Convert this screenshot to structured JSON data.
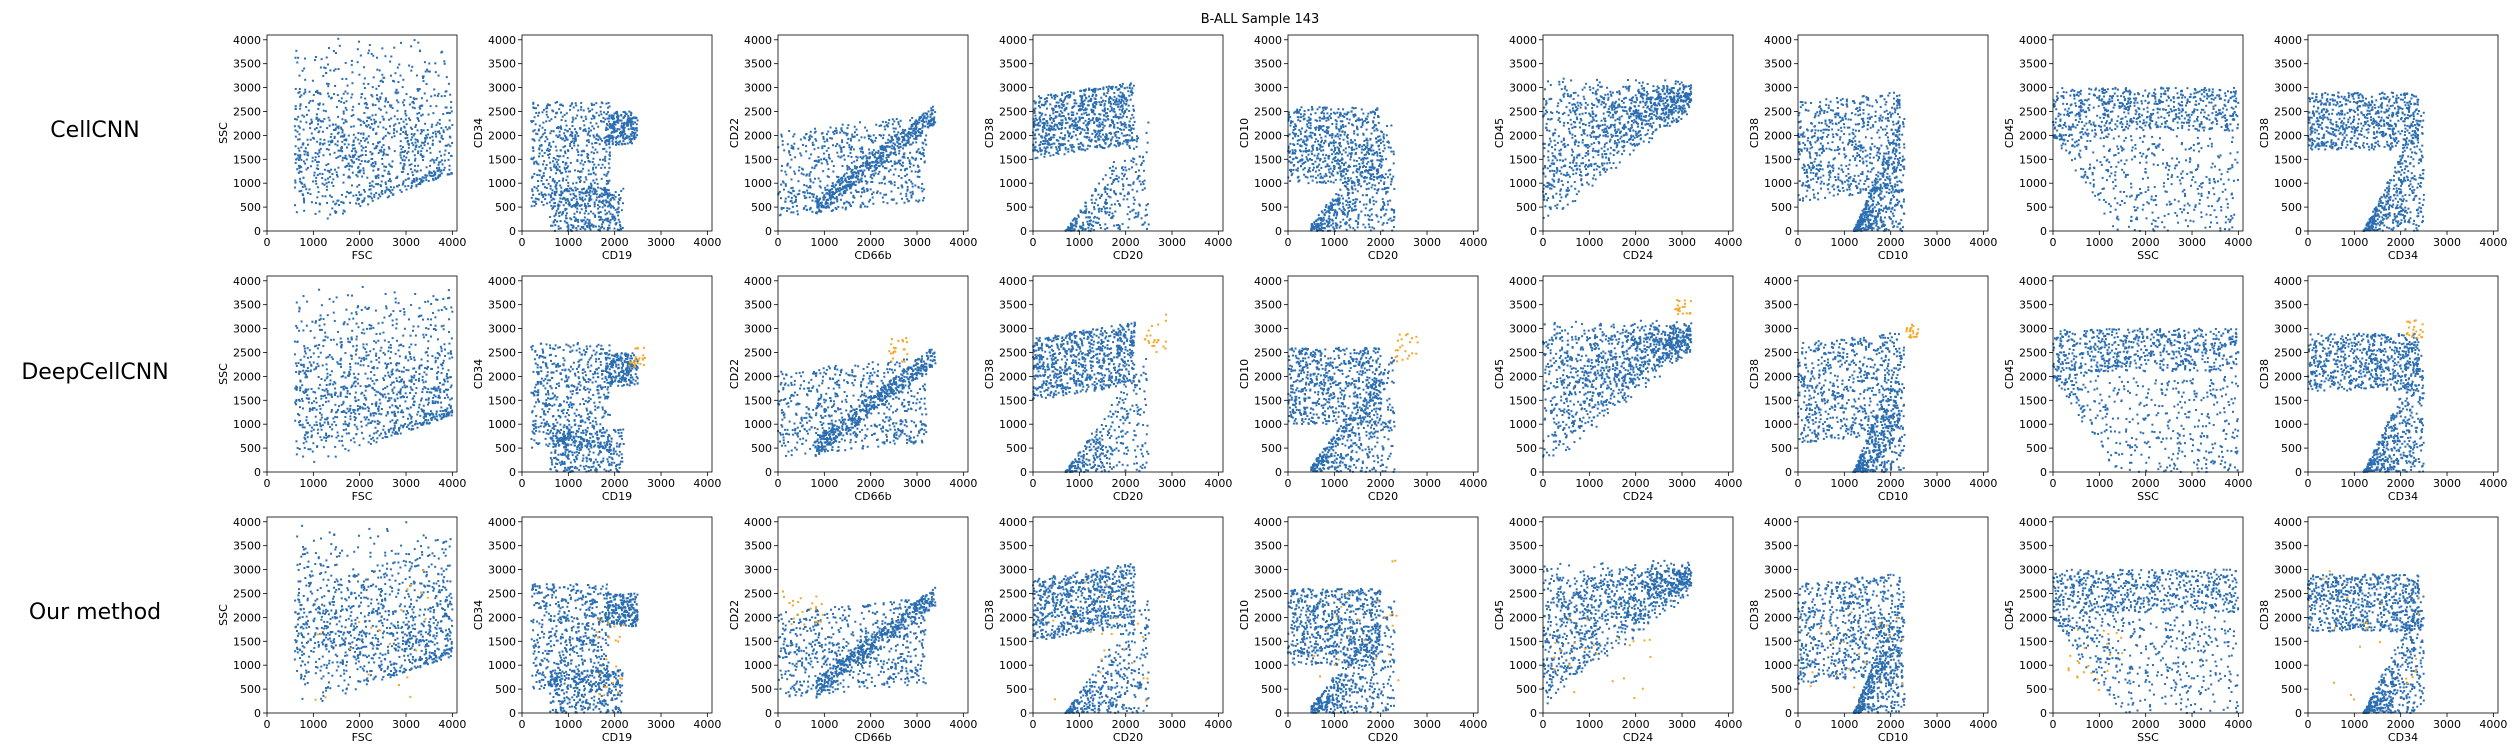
{
  "figure": {
    "title": "B-ALL Sample 143",
    "methods": [
      "CellCNN",
      "DeepCellCNN",
      "Our method"
    ],
    "colors": {
      "population": "#2a6db0",
      "highlight": "#f5a623"
    }
  },
  "chart_data": {
    "type": "scatter",
    "title": "B-ALL Sample 143",
    "rows": [
      "CellCNN",
      "DeepCellCNN",
      "Our method"
    ],
    "series": [
      {
        "name": "",
        "color": "#2a6db0",
        "description": "all cells"
      },
      {
        "name": "",
        "color": "#f5a623",
        "description": "selected cells"
      }
    ],
    "xlim": [
      0,
      4100
    ],
    "ylim": [
      0,
      4100
    ],
    "xticks": [
      0,
      1000,
      2000,
      3000,
      4000
    ],
    "yticks": [
      0,
      500,
      1000,
      1500,
      2000,
      2500,
      3000,
      3500,
      4000
    ],
    "panels": [
      {
        "xlabel": "FSC",
        "ylabel": "SSC"
      },
      {
        "xlabel": "CD19",
        "ylabel": "CD34"
      },
      {
        "xlabel": "CD66b",
        "ylabel": "CD22"
      },
      {
        "xlabel": "CD20",
        "ylabel": "CD38"
      },
      {
        "xlabel": "CD20",
        "ylabel": "CD10"
      },
      {
        "xlabel": "CD24",
        "ylabel": "CD45"
      },
      {
        "xlabel": "CD10",
        "ylabel": "CD38"
      },
      {
        "xlabel": "SSC",
        "ylabel": "CD45"
      },
      {
        "xlabel": "CD34",
        "ylabel": "CD38"
      }
    ],
    "highlight_regions": {
      "DeepCellCNN": [
        {
          "panel": 1,
          "x": [
            2300,
            2700
          ],
          "y": [
            2200,
            2600
          ]
        },
        {
          "panel": 2,
          "x": [
            2400,
            2800
          ],
          "y": [
            2300,
            2800
          ]
        },
        {
          "panel": 3,
          "x": [
            2400,
            2900
          ],
          "y": [
            2500,
            3300
          ]
        },
        {
          "panel": 4,
          "x": [
            2300,
            2800
          ],
          "y": [
            2200,
            2900
          ]
        },
        {
          "panel": 5,
          "x": [
            2800,
            3200
          ],
          "y": [
            3300,
            3600
          ]
        },
        {
          "panel": 6,
          "x": [
            2300,
            2600
          ],
          "y": [
            2800,
            3100
          ]
        },
        {
          "panel": 8,
          "x": [
            2100,
            2500
          ],
          "y": [
            2800,
            3200
          ]
        }
      ],
      "Our method": [
        {
          "panel": 0,
          "x": [
            1000,
            3500
          ],
          "y": [
            200,
            3000
          ]
        },
        {
          "panel": 1,
          "x": [
            1600,
            2200
          ],
          "y": [
            300,
            2000
          ]
        },
        {
          "panel": 2,
          "x": [
            100,
            1000
          ],
          "y": [
            1800,
            2600
          ]
        },
        {
          "panel": 3,
          "x": [
            200,
            2500
          ],
          "y": [
            200,
            2800
          ]
        },
        {
          "panel": 4,
          "x": [
            500,
            2500
          ],
          "y": [
            400,
            3200
          ]
        },
        {
          "panel": 5,
          "x": [
            200,
            2800
          ],
          "y": [
            200,
            2000
          ]
        },
        {
          "panel": 6,
          "x": [
            200,
            2400
          ],
          "y": [
            100,
            2200
          ]
        },
        {
          "panel": 7,
          "x": [
            300,
            1500
          ],
          "y": [
            400,
            1800
          ]
        },
        {
          "panel": 8,
          "x": [
            300,
            2500
          ],
          "y": [
            200,
            3000
          ]
        }
      ]
    }
  }
}
